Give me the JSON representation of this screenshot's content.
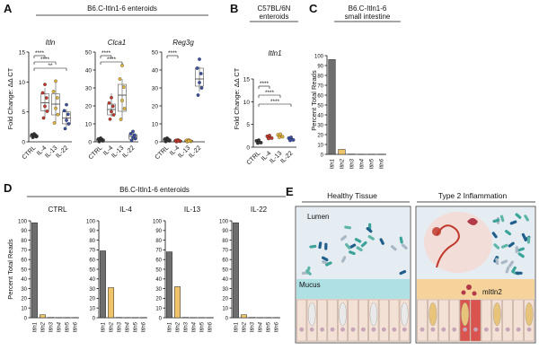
{
  "panels": {
    "A": {
      "letter": "A",
      "header": "B6.C-Itln1-6 enteroids",
      "ylabel": "Fold Change: ΔΔ CT",
      "groups": [
        "CTRL",
        "IL-4",
        "IL-13",
        "IL-22"
      ],
      "subpanels": [
        {
          "gene": "Itln",
          "yticks": [
            "0",
            "5",
            "10",
            "15"
          ],
          "ylim": [
            0,
            15
          ],
          "sig": [
            "****",
            "****",
            "**"
          ],
          "medians": [
            1.0,
            6.5,
            6.3,
            4.0
          ],
          "q1": [
            0.8,
            5.2,
            4.5,
            3.0
          ],
          "q3": [
            1.1,
            8.0,
            8.0,
            5.0
          ],
          "min": [
            0.6,
            4.0,
            3.0,
            2.5
          ],
          "max": [
            1.3,
            9.0,
            10.0,
            5.5
          ]
        },
        {
          "gene": "Clca1",
          "yticks": [
            "0",
            "10",
            "20",
            "30",
            "40",
            "50"
          ],
          "ylim": [
            0,
            50
          ],
          "sig": [
            "****",
            "****"
          ],
          "medians": [
            1.0,
            18.0,
            26.0,
            3.0
          ],
          "q1": [
            0.5,
            15.0,
            17.0,
            1.5
          ],
          "q3": [
            1.5,
            21.0,
            32.0,
            4.0
          ],
          "min": [
            0.2,
            14.0,
            12.0,
            0.5
          ],
          "max": [
            2.0,
            27.0,
            35.0,
            5.0
          ]
        },
        {
          "gene": "Reg3g",
          "yticks": [
            "0",
            "10",
            "20",
            "30",
            "40",
            "50"
          ],
          "ylim": [
            0,
            50
          ],
          "sig": [
            "****"
          ],
          "medians": [
            1.0,
            0.5,
            0.5,
            35.0
          ],
          "q1": [
            0.5,
            0.3,
            0.3,
            31.0
          ],
          "q3": [
            1.5,
            0.8,
            0.8,
            41.0
          ],
          "min": [
            0.2,
            0.1,
            0.1,
            28.0
          ],
          "max": [
            2.0,
            1.0,
            1.0,
            42.0
          ]
        }
      ]
    },
    "B": {
      "letter": "B",
      "header_line1": "C57BL/6N",
      "header_line2": "enteroids",
      "gene": "Itln1",
      "ylabel": "Fold Change: ΔΔ CT",
      "yticks": [
        "0",
        "5",
        "10",
        "15"
      ],
      "ylim": [
        0,
        15
      ],
      "groups": [
        "CTRL",
        "IL-4",
        "IL-13",
        "IL-22"
      ],
      "sig": [
        "****",
        "****",
        "****"
      ],
      "medians": [
        1.2,
        2.2,
        2.5,
        1.8
      ]
    },
    "C": {
      "letter": "C",
      "header_line1": "B6.C-Itln1-6",
      "header_line2": "small intestine",
      "ylabel": "Percent Total Reads",
      "yticks": [
        "0",
        "10",
        "20",
        "30",
        "40",
        "50",
        "60",
        "70",
        "80",
        "90",
        "100"
      ],
      "ylim": [
        0,
        100
      ],
      "categories": [
        "Itln1",
        "Itln2",
        "Itln3",
        "Itln4",
        "Itln5",
        "Itln6"
      ],
      "values": [
        96,
        5,
        0.3,
        0.2,
        0.2,
        0.2
      ]
    },
    "D": {
      "letter": "D",
      "header": "B6.C-Itln1-6 enteroids",
      "ylabel": "Percent Total Reads",
      "yticks": [
        "0",
        "10",
        "20",
        "30",
        "40",
        "50",
        "60",
        "70",
        "80",
        "90",
        "100"
      ],
      "ylim": [
        0,
        100
      ],
      "categories": [
        "Itln1",
        "Itln2",
        "Itln3",
        "Itln4",
        "Itln5",
        "Itln6"
      ],
      "subpanels": [
        {
          "title": "CTRL",
          "values": [
            98,
            3,
            0.3,
            0.2,
            0.2,
            0.2
          ]
        },
        {
          "title": "IL-4",
          "values": [
            69,
            31,
            0.3,
            0.2,
            0.2,
            0.2
          ]
        },
        {
          "title": "IL-13",
          "values": [
            68,
            32,
            0.3,
            0.2,
            0.2,
            0.2
          ]
        },
        {
          "title": "IL-22",
          "values": [
            98,
            3,
            0.3,
            0.2,
            0.2,
            0.2
          ]
        }
      ]
    },
    "E": {
      "letter": "E",
      "healthy_title": "Healthy Tissue",
      "inflamed_title": "Type 2 Inflammation",
      "lumen_label": "Lumen",
      "mucus_label": "Mucus",
      "mitln_label": "mItln2"
    }
  },
  "colors": {
    "ctrl": "#333333",
    "il4": "#c0392b",
    "il13": "#e2b53c",
    "il22": "#3b4fa0",
    "bar_itln1": "#6e6e6e",
    "bar_itln2": "#f0c46a",
    "mucus": "#aee0e4",
    "lumen_bg": "#e6edf2",
    "tissue": "#f0dcd0"
  }
}
